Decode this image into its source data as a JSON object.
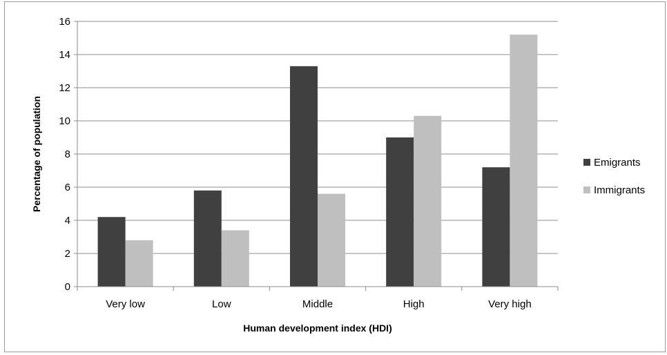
{
  "chart_data": {
    "type": "bar",
    "categories": [
      "Very low",
      "Low",
      "Middle",
      "High",
      "Very high"
    ],
    "series": [
      {
        "name": "Emigrants",
        "values": [
          4.2,
          5.8,
          13.3,
          9.0,
          7.2
        ],
        "color": "#404040"
      },
      {
        "name": "Immigrants",
        "values": [
          2.8,
          3.4,
          5.6,
          10.3,
          15.2
        ],
        "color": "#bfbfbf"
      }
    ],
    "title": "",
    "xlabel": "Human development index (HDI)",
    "ylabel": "Percentage of population",
    "ylim": [
      0,
      16
    ],
    "yticks": [
      0,
      2,
      4,
      6,
      8,
      10,
      12,
      14,
      16
    ],
    "grid": true,
    "legend_position": "right",
    "gridline_color": "#8c8c8c"
  }
}
